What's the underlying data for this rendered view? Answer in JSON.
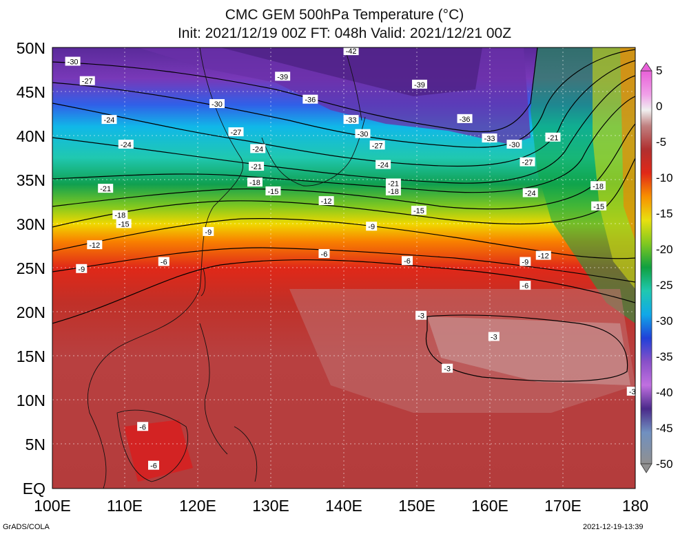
{
  "title": {
    "line1": "CMC GEM 500hPa Temperature (°C)",
    "line2": "Init: 2021/12/19 00Z  FT: 048h  Valid: 2021/12/21 00Z"
  },
  "axes": {
    "lat_labels": [
      "50N",
      "45N",
      "40N",
      "35N",
      "30N",
      "25N",
      "20N",
      "15N",
      "10N",
      "5N",
      "EQ"
    ],
    "lon_labels": [
      "100E",
      "110E",
      "120E",
      "130E",
      "140E",
      "150E",
      "160E",
      "170E",
      "180"
    ]
  },
  "colorbar": {
    "labels": [
      "5",
      "0",
      "-5",
      "-10",
      "-15",
      "-20",
      "-25",
      "-30",
      "-35",
      "-40",
      "-45",
      "-50"
    ],
    "colors": [
      "#a0a0a0",
      "#7a8aa0",
      "#8aa8c8",
      "#6a5aa8",
      "#4a2a8a",
      "#7a3aa8",
      "#a050c0",
      "#c060d8",
      "#3050e0",
      "#1a2ac0",
      "#0890e8",
      "#10c8f0",
      "#20d8c0",
      "#10a860",
      "#0a8a30",
      "#30b030",
      "#a0d020",
      "#e0e010",
      "#f8c800",
      "#f89000",
      "#f86000",
      "#e83010",
      "#c82020",
      "#b83030",
      "#a84040",
      "#b86060",
      "#c08080",
      "#d0a0a0",
      "#e0c0c0",
      "#f0f0f0",
      "#f8c0f0",
      "#f090e8",
      "#e860d8"
    ]
  },
  "footer": {
    "left": "GrADS/COLA",
    "right": "2021-12-19-13:39"
  },
  "contour_labels": [
    {
      "text": "-42",
      "lon": 141.0,
      "lat": 49.6
    },
    {
      "text": "-39",
      "lon": 131.6,
      "lat": 46.7
    },
    {
      "text": "-39",
      "lon": 150.4,
      "lat": 45.8
    },
    {
      "text": "-36",
      "lon": 135.4,
      "lat": 44.1
    },
    {
      "text": "-36",
      "lon": 156.6,
      "lat": 41.9
    },
    {
      "text": "-33",
      "lon": 141.0,
      "lat": 41.8
    },
    {
      "text": "-33",
      "lon": 160.0,
      "lat": 39.7
    },
    {
      "text": "-30",
      "lon": 102.8,
      "lat": 48.4
    },
    {
      "text": "-30",
      "lon": 122.6,
      "lat": 43.6
    },
    {
      "text": "-30",
      "lon": 142.6,
      "lat": 40.2
    },
    {
      "text": "-30",
      "lon": 163.4,
      "lat": 39.0
    },
    {
      "text": "-27",
      "lon": 104.8,
      "lat": 46.2
    },
    {
      "text": "-27",
      "lon": 125.2,
      "lat": 40.4
    },
    {
      "text": "-27",
      "lon": 144.6,
      "lat": 38.9
    },
    {
      "text": "-27",
      "lon": 165.2,
      "lat": 37.0
    },
    {
      "text": "-24",
      "lon": 107.8,
      "lat": 41.8
    },
    {
      "text": "-24",
      "lon": 110.1,
      "lat": 39.0
    },
    {
      "text": "-24",
      "lon": 128.2,
      "lat": 38.5
    },
    {
      "text": "-24",
      "lon": 145.4,
      "lat": 36.7
    },
    {
      "text": "-24",
      "lon": 165.6,
      "lat": 33.5
    },
    {
      "text": "-21",
      "lon": 107.3,
      "lat": 34.0
    },
    {
      "text": "-21",
      "lon": 128.0,
      "lat": 36.5
    },
    {
      "text": "-21",
      "lon": 146.8,
      "lat": 34.6
    },
    {
      "text": "-21",
      "lon": 168.7,
      "lat": 39.8
    },
    {
      "text": "-18",
      "lon": 109.3,
      "lat": 31.0
    },
    {
      "text": "-18",
      "lon": 127.8,
      "lat": 34.7
    },
    {
      "text": "-18",
      "lon": 146.8,
      "lat": 33.7
    },
    {
      "text": "-18",
      "lon": 174.9,
      "lat": 34.3
    },
    {
      "text": "-15",
      "lon": 109.8,
      "lat": 30.0
    },
    {
      "text": "-15",
      "lon": 130.3,
      "lat": 33.7
    },
    {
      "text": "-15",
      "lon": 150.3,
      "lat": 31.5
    },
    {
      "text": "-15",
      "lon": 175.0,
      "lat": 32.0
    },
    {
      "text": "-12",
      "lon": 105.8,
      "lat": 27.6
    },
    {
      "text": "-12",
      "lon": 137.6,
      "lat": 32.6
    },
    {
      "text": "-12",
      "lon": 167.4,
      "lat": 26.4
    },
    {
      "text": "-9",
      "lon": 104.0,
      "lat": 24.9
    },
    {
      "text": "-9",
      "lon": 121.4,
      "lat": 29.1
    },
    {
      "text": "-9",
      "lon": 143.8,
      "lat": 29.7
    },
    {
      "text": "-9",
      "lon": 164.9,
      "lat": 25.7
    },
    {
      "text": "-6",
      "lon": 115.3,
      "lat": 25.7
    },
    {
      "text": "-6",
      "lon": 137.3,
      "lat": 26.6
    },
    {
      "text": "-6",
      "lon": 148.7,
      "lat": 25.8
    },
    {
      "text": "-6",
      "lon": 164.9,
      "lat": 23.0
    },
    {
      "text": "-6",
      "lon": 112.4,
      "lat": 7.0
    },
    {
      "text": "-6",
      "lon": 113.9,
      "lat": 2.6
    },
    {
      "text": "-3",
      "lon": 150.6,
      "lat": 19.6
    },
    {
      "text": "-3",
      "lon": 160.6,
      "lat": 17.2
    },
    {
      "text": "-3",
      "lon": 154.2,
      "lat": 13.6
    },
    {
      "text": "-3",
      "lon": 179.6,
      "lat": 11.0
    }
  ]
}
